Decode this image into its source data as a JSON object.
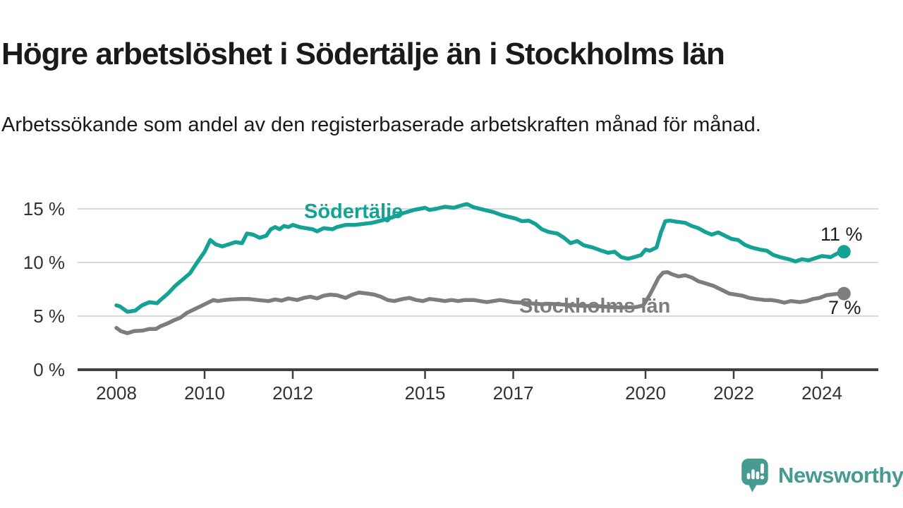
{
  "chart_data": {
    "type": "line",
    "title": "Högre arbetslöshet i Södertälje än i Stockholms län",
    "subtitle": "Arbetssökande som andel av den registerbaserade arbetskraften månad för månad.",
    "grid": "horizontal",
    "legend_position": "inline-labels-on-lines",
    "x_axis": {
      "range": [
        2007.1,
        2025.3
      ],
      "ticks": [
        2008,
        2010,
        2012,
        2015,
        2017,
        2020,
        2022,
        2024
      ],
      "tick_labels": [
        "2008",
        "2010",
        "2012",
        "2015",
        "2017",
        "2020",
        "2022",
        "2024"
      ]
    },
    "y_axis": {
      "unit": "%",
      "range": [
        0,
        16.5
      ],
      "ticks": [
        0,
        5,
        10,
        15
      ],
      "tick_labels": [
        "0 %",
        "5 %",
        "10 %",
        "15 %"
      ]
    },
    "series": [
      {
        "name": "Södertälje",
        "color": "#14a295",
        "end_value": 11,
        "end_label": "11 %",
        "points": [
          [
            2008.0,
            6.0
          ],
          [
            2008.08,
            5.9
          ],
          [
            2008.25,
            5.4
          ],
          [
            2008.42,
            5.5
          ],
          [
            2008.58,
            6.0
          ],
          [
            2008.75,
            6.3
          ],
          [
            2008.92,
            6.2
          ],
          [
            2009.0,
            6.5
          ],
          [
            2009.17,
            7.1
          ],
          [
            2009.33,
            7.8
          ],
          [
            2009.5,
            8.4
          ],
          [
            2009.67,
            9.0
          ],
          [
            2009.83,
            10.0
          ],
          [
            2010.0,
            11.0
          ],
          [
            2010.13,
            12.1
          ],
          [
            2010.25,
            11.7
          ],
          [
            2010.4,
            11.5
          ],
          [
            2010.55,
            11.7
          ],
          [
            2010.7,
            11.9
          ],
          [
            2010.85,
            11.8
          ],
          [
            2010.96,
            12.7
          ],
          [
            2011.1,
            12.6
          ],
          [
            2011.25,
            12.3
          ],
          [
            2011.4,
            12.5
          ],
          [
            2011.5,
            13.1
          ],
          [
            2011.6,
            13.3
          ],
          [
            2011.7,
            13.1
          ],
          [
            2011.8,
            13.4
          ],
          [
            2011.9,
            13.3
          ],
          [
            2012.0,
            13.5
          ],
          [
            2012.15,
            13.3
          ],
          [
            2012.3,
            13.2
          ],
          [
            2012.45,
            13.1
          ],
          [
            2012.55,
            12.9
          ],
          [
            2012.7,
            13.2
          ],
          [
            2012.9,
            13.1
          ],
          [
            2013.0,
            13.3
          ],
          [
            2013.2,
            13.5
          ],
          [
            2013.4,
            13.5
          ],
          [
            2013.6,
            13.6
          ],
          [
            2013.8,
            13.7
          ],
          [
            2014.0,
            13.9
          ],
          [
            2014.25,
            14.2
          ],
          [
            2014.5,
            14.6
          ],
          [
            2014.75,
            14.9
          ],
          [
            2015.0,
            15.1
          ],
          [
            2015.1,
            14.9
          ],
          [
            2015.25,
            15.0
          ],
          [
            2015.45,
            15.2
          ],
          [
            2015.65,
            15.1
          ],
          [
            2015.85,
            15.35
          ],
          [
            2015.95,
            15.45
          ],
          [
            2016.1,
            15.15
          ],
          [
            2016.3,
            14.95
          ],
          [
            2016.55,
            14.7
          ],
          [
            2016.75,
            14.4
          ],
          [
            2016.9,
            14.25
          ],
          [
            2017.05,
            14.1
          ],
          [
            2017.2,
            13.85
          ],
          [
            2017.35,
            13.9
          ],
          [
            2017.5,
            13.6
          ],
          [
            2017.65,
            13.1
          ],
          [
            2017.8,
            12.85
          ],
          [
            2018.0,
            12.7
          ],
          [
            2018.15,
            12.3
          ],
          [
            2018.3,
            11.8
          ],
          [
            2018.45,
            12.0
          ],
          [
            2018.6,
            11.6
          ],
          [
            2018.8,
            11.4
          ],
          [
            2019.0,
            11.1
          ],
          [
            2019.15,
            10.9
          ],
          [
            2019.3,
            11.0
          ],
          [
            2019.45,
            10.5
          ],
          [
            2019.6,
            10.35
          ],
          [
            2019.75,
            10.5
          ],
          [
            2019.9,
            10.7
          ],
          [
            2020.0,
            11.2
          ],
          [
            2020.1,
            11.1
          ],
          [
            2020.25,
            11.4
          ],
          [
            2020.35,
            12.8
          ],
          [
            2020.45,
            13.85
          ],
          [
            2020.55,
            13.9
          ],
          [
            2020.7,
            13.8
          ],
          [
            2020.9,
            13.7
          ],
          [
            2021.05,
            13.4
          ],
          [
            2021.2,
            13.2
          ],
          [
            2021.35,
            12.85
          ],
          [
            2021.5,
            12.6
          ],
          [
            2021.65,
            12.8
          ],
          [
            2021.8,
            12.5
          ],
          [
            2021.95,
            12.2
          ],
          [
            2022.1,
            12.1
          ],
          [
            2022.25,
            11.65
          ],
          [
            2022.4,
            11.4
          ],
          [
            2022.6,
            11.2
          ],
          [
            2022.75,
            11.1
          ],
          [
            2022.9,
            10.7
          ],
          [
            2023.05,
            10.5
          ],
          [
            2023.25,
            10.3
          ],
          [
            2023.4,
            10.1
          ],
          [
            2023.55,
            10.3
          ],
          [
            2023.7,
            10.2
          ],
          [
            2023.85,
            10.4
          ],
          [
            2024.0,
            10.6
          ],
          [
            2024.2,
            10.5
          ],
          [
            2024.35,
            10.85
          ],
          [
            2024.5,
            11.0
          ]
        ]
      },
      {
        "name": "Stockholms län",
        "color": "#7d7d7d",
        "end_value": 7,
        "end_label": "7 %",
        "points": [
          [
            2008.0,
            3.9
          ],
          [
            2008.1,
            3.6
          ],
          [
            2008.25,
            3.4
          ],
          [
            2008.4,
            3.6
          ],
          [
            2008.6,
            3.65
          ],
          [
            2008.75,
            3.8
          ],
          [
            2008.9,
            3.8
          ],
          [
            2009.0,
            4.05
          ],
          [
            2009.15,
            4.3
          ],
          [
            2009.3,
            4.6
          ],
          [
            2009.45,
            4.85
          ],
          [
            2009.6,
            5.3
          ],
          [
            2009.8,
            5.7
          ],
          [
            2010.0,
            6.1
          ],
          [
            2010.2,
            6.5
          ],
          [
            2010.3,
            6.4
          ],
          [
            2010.45,
            6.5
          ],
          [
            2010.6,
            6.55
          ],
          [
            2010.8,
            6.6
          ],
          [
            2011.0,
            6.6
          ],
          [
            2011.2,
            6.5
          ],
          [
            2011.45,
            6.4
          ],
          [
            2011.6,
            6.55
          ],
          [
            2011.75,
            6.45
          ],
          [
            2011.9,
            6.65
          ],
          [
            2012.1,
            6.5
          ],
          [
            2012.25,
            6.7
          ],
          [
            2012.4,
            6.8
          ],
          [
            2012.55,
            6.65
          ],
          [
            2012.7,
            6.9
          ],
          [
            2012.85,
            7.0
          ],
          [
            2013.0,
            6.95
          ],
          [
            2013.2,
            6.7
          ],
          [
            2013.35,
            7.0
          ],
          [
            2013.5,
            7.2
          ],
          [
            2013.7,
            7.1
          ],
          [
            2013.85,
            7.0
          ],
          [
            2014.0,
            6.8
          ],
          [
            2014.15,
            6.5
          ],
          [
            2014.3,
            6.4
          ],
          [
            2014.5,
            6.6
          ],
          [
            2014.65,
            6.7
          ],
          [
            2014.8,
            6.5
          ],
          [
            2014.95,
            6.4
          ],
          [
            2015.1,
            6.6
          ],
          [
            2015.3,
            6.5
          ],
          [
            2015.45,
            6.4
          ],
          [
            2015.6,
            6.5
          ],
          [
            2015.75,
            6.4
          ],
          [
            2015.9,
            6.5
          ],
          [
            2016.1,
            6.5
          ],
          [
            2016.25,
            6.4
          ],
          [
            2016.4,
            6.3
          ],
          [
            2016.55,
            6.4
          ],
          [
            2016.7,
            6.5
          ],
          [
            2016.85,
            6.4
          ],
          [
            2017.0,
            6.3
          ],
          [
            2017.2,
            6.25
          ],
          [
            2017.35,
            6.2
          ],
          [
            2017.5,
            6.15
          ],
          [
            2017.65,
            6.1
          ],
          [
            2017.8,
            6.15
          ],
          [
            2018.0,
            6.1
          ],
          [
            2018.2,
            6.05
          ],
          [
            2018.4,
            6.0
          ],
          [
            2018.6,
            5.95
          ],
          [
            2018.8,
            5.95
          ],
          [
            2019.0,
            5.9
          ],
          [
            2019.2,
            5.85
          ],
          [
            2019.4,
            5.8
          ],
          [
            2019.6,
            5.8
          ],
          [
            2019.8,
            5.85
          ],
          [
            2019.95,
            6.0
          ],
          [
            2020.1,
            7.0
          ],
          [
            2020.2,
            7.8
          ],
          [
            2020.3,
            8.6
          ],
          [
            2020.4,
            9.05
          ],
          [
            2020.5,
            9.1
          ],
          [
            2020.6,
            8.9
          ],
          [
            2020.75,
            8.7
          ],
          [
            2020.9,
            8.8
          ],
          [
            2021.05,
            8.6
          ],
          [
            2021.2,
            8.25
          ],
          [
            2021.4,
            8.0
          ],
          [
            2021.55,
            7.8
          ],
          [
            2021.7,
            7.5
          ],
          [
            2021.9,
            7.1
          ],
          [
            2022.05,
            7.0
          ],
          [
            2022.2,
            6.9
          ],
          [
            2022.35,
            6.7
          ],
          [
            2022.5,
            6.6
          ],
          [
            2022.7,
            6.5
          ],
          [
            2022.85,
            6.5
          ],
          [
            2023.0,
            6.4
          ],
          [
            2023.15,
            6.25
          ],
          [
            2023.3,
            6.4
          ],
          [
            2023.5,
            6.3
          ],
          [
            2023.65,
            6.4
          ],
          [
            2023.8,
            6.6
          ],
          [
            2023.95,
            6.7
          ],
          [
            2024.1,
            6.95
          ],
          [
            2024.3,
            7.05
          ],
          [
            2024.5,
            7.1
          ]
        ]
      }
    ]
  },
  "colors": {
    "sodertalje_line": "#14a295",
    "stockholm_line": "#7d7d7d",
    "axis": "#3f3f3f",
    "grid": "#d9d9d9",
    "heading_text": "#1a1a1a",
    "tick_label_text": "#333333",
    "brand_teal": "#479a8f"
  },
  "branding": {
    "logo_text": "Newsworthy",
    "logo_icon": "bar-chart-speech-bubble-icon"
  }
}
